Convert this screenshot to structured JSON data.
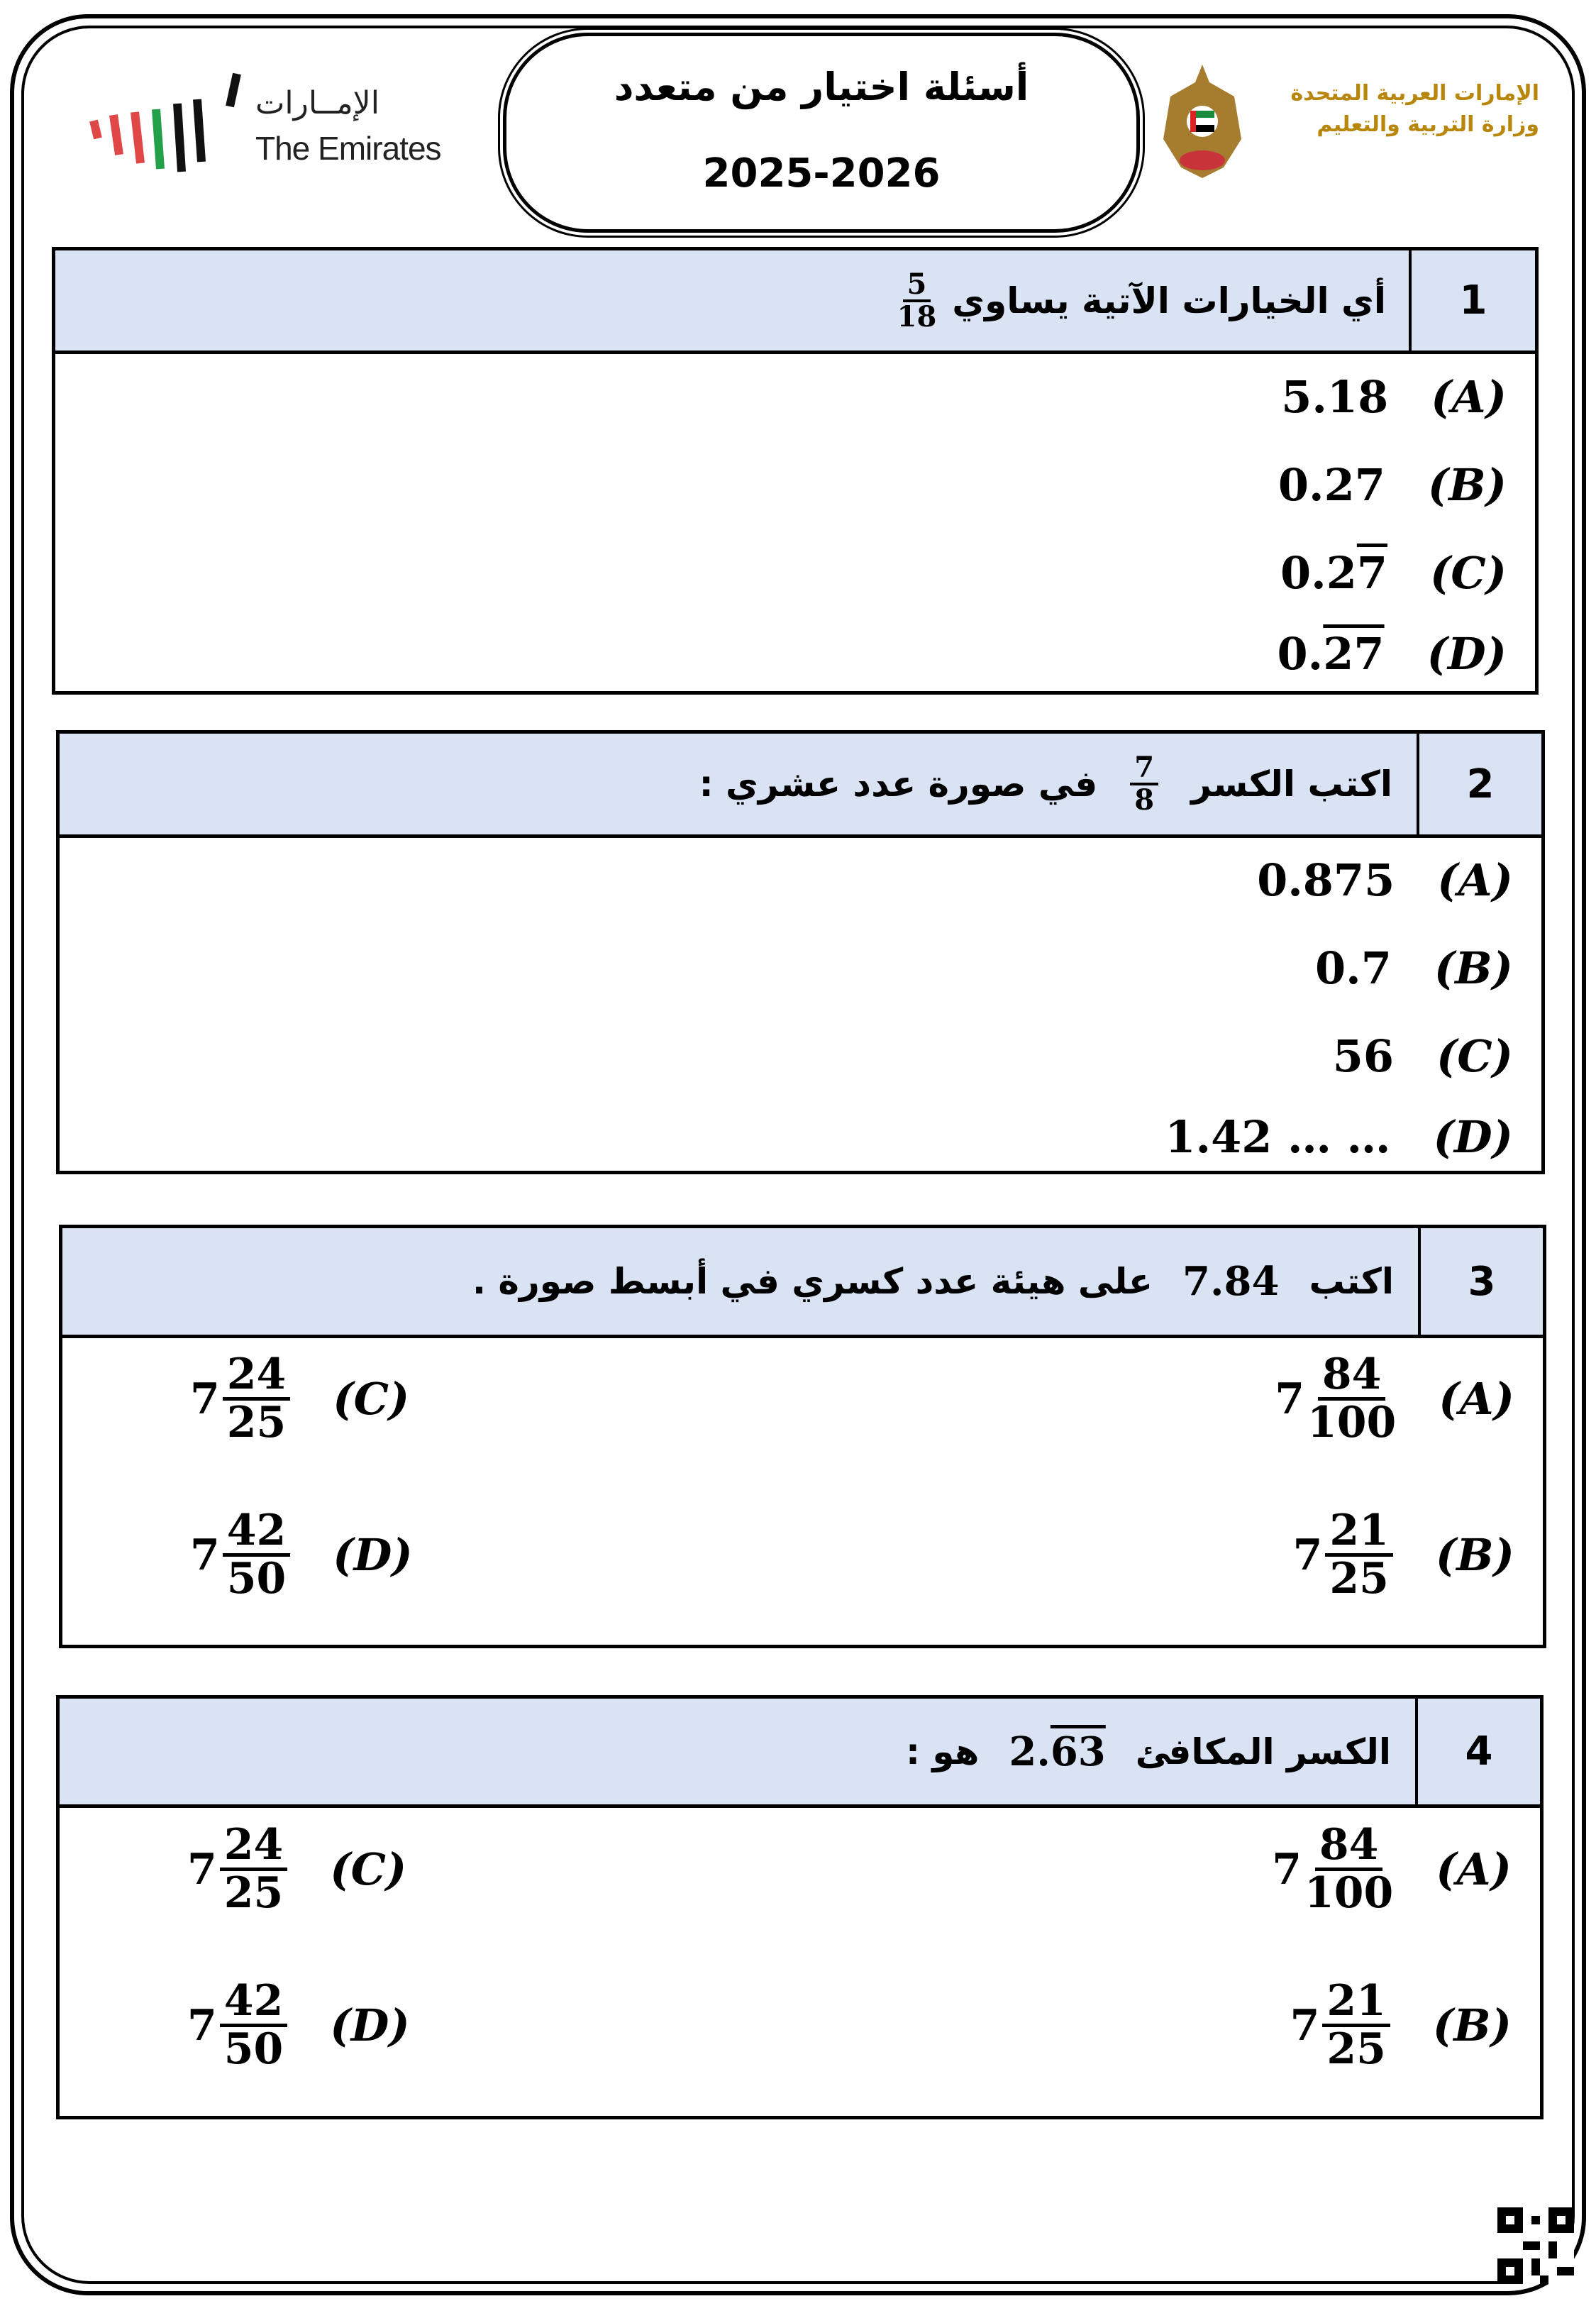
{
  "header": {
    "title": "أسئلة اختيار من متعدد",
    "year": "2025-2026",
    "logo_left": {
      "arabic": "الإمــارات",
      "english": "The Emirates"
    },
    "logo_right": {
      "line1": "الإمارات العربية المتحدة",
      "line2": "وزارة التربية والتعليم"
    }
  },
  "questions": [
    {
      "number": "1",
      "text": "أي الخيارات الآتية يساوي",
      "frac": {
        "n": "5",
        "d": "18"
      },
      "options": [
        {
          "label": "(A)",
          "pre": "5.18",
          "ov": ""
        },
        {
          "label": "(B)",
          "pre": "0.27",
          "ov": ""
        },
        {
          "label": "(C)",
          "pre": "0.2",
          "ov": "7"
        },
        {
          "label": "(D)",
          "pre": "0.",
          "ov": "27"
        }
      ]
    },
    {
      "number": "2",
      "text_before": "اكتب الكسر",
      "frac": {
        "n": "7",
        "d": "8"
      },
      "text_after": "في صورة عدد عشري :",
      "options": [
        {
          "label": "(A)",
          "value": "0.875"
        },
        {
          "label": "(B)",
          "value": "0.7"
        },
        {
          "label": "(C)",
          "value": "56"
        },
        {
          "label": "(D)",
          "value": "1.42 … …"
        }
      ]
    },
    {
      "number": "3",
      "text_before": "اكتب",
      "value": "7.84",
      "text_after": "على هيئة عدد كسري في أبسط صورة .",
      "options": [
        {
          "label": "(A)",
          "whole": "7",
          "n": "84",
          "d": "100"
        },
        {
          "label": "(B)",
          "whole": "7",
          "n": "21",
          "d": "25"
        },
        {
          "label": "(C)",
          "whole": "7",
          "n": "24",
          "d": "25"
        },
        {
          "label": "(D)",
          "whole": "7",
          "n": "42",
          "d": "50"
        }
      ]
    },
    {
      "number": "4",
      "text_before": "الكسر المكافئ",
      "value_pre": "2.",
      "value_ov": "63",
      "text_after": "هو :",
      "options": [
        {
          "label": "(A)",
          "whole": "7",
          "n": "84",
          "d": "100"
        },
        {
          "label": "(B)",
          "whole": "7",
          "n": "21",
          "d": "25"
        },
        {
          "label": "(C)",
          "whole": "7",
          "n": "24",
          "d": "25"
        },
        {
          "label": "(D)",
          "whole": "7",
          "n": "42",
          "d": "50"
        }
      ]
    }
  ],
  "colors": {
    "header_fill": "#dae3f3",
    "border": "#000000"
  }
}
